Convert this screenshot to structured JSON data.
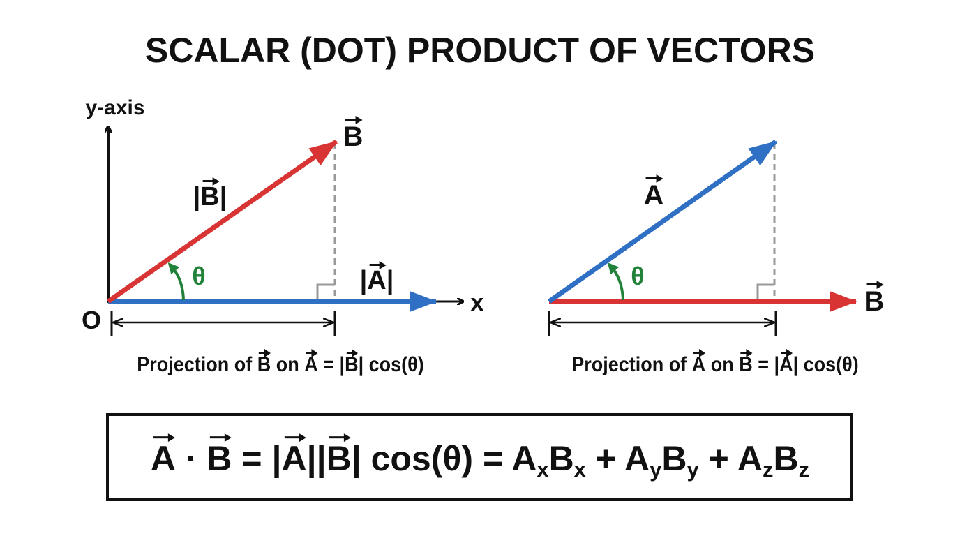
{
  "title": "SCALAR (DOT) PRODUCT OF VECTORS",
  "left_diagram": {
    "y_axis_label": "y-axis",
    "x_axis_label": "x",
    "origin_label": "O",
    "vector_b_label": "B",
    "magnitude_b_label": [
      "|",
      "B",
      "|"
    ],
    "angle_label": "θ",
    "magnitude_a_label": [
      "|",
      "A",
      "|"
    ],
    "projection_caption": [
      "Projection of ",
      "B",
      " on ",
      "A",
      " = |",
      "B",
      "| cos(θ)"
    ]
  },
  "right_diagram": {
    "vector_a_label": "A",
    "angle_label": "θ",
    "vector_b_label": "B",
    "projection_caption": [
      "Projection of ",
      "A",
      " on ",
      "B",
      " = |",
      "A",
      "| cos(θ)"
    ]
  },
  "formula": [
    "A",
    " · ",
    "B",
    " = |",
    "A",
    "||",
    "B",
    "| cos(θ) = A",
    "x",
    "B",
    "x",
    " + A",
    "y",
    "B",
    "y",
    " + A",
    "z",
    "B",
    "z"
  ]
}
